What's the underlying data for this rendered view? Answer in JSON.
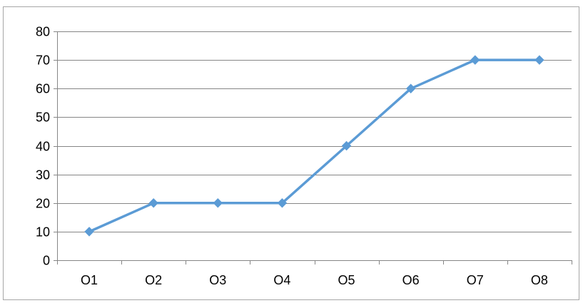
{
  "chart_data": {
    "type": "line",
    "title": "",
    "xlabel": "",
    "ylabel": "",
    "categories": [
      "O1",
      "O2",
      "O3",
      "O4",
      "O5",
      "O6",
      "O7",
      "O8"
    ],
    "series": [
      {
        "values": [
          10,
          20,
          20,
          20,
          40,
          60,
          70,
          70
        ],
        "color": "#5b9bd5",
        "marker": "diamond"
      }
    ],
    "ylim": [
      0,
      80
    ],
    "y_ticks": [
      "0",
      "10",
      "20",
      "30",
      "40",
      "50",
      "60",
      "70",
      "80"
    ],
    "grid": true,
    "grid_color": "#868686",
    "legend": "none"
  }
}
